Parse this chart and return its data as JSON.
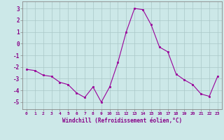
{
  "x": [
    0,
    1,
    2,
    3,
    4,
    5,
    6,
    7,
    8,
    9,
    10,
    11,
    12,
    13,
    14,
    15,
    16,
    17,
    18,
    19,
    20,
    21,
    22,
    23
  ],
  "y": [
    -2.2,
    -2.3,
    -2.7,
    -2.8,
    -3.3,
    -3.5,
    -4.2,
    -4.6,
    -3.7,
    -5.0,
    -3.7,
    -1.6,
    1.0,
    3.0,
    2.9,
    1.6,
    -0.3,
    -0.7,
    -2.6,
    -3.1,
    -3.5,
    -4.3,
    -4.5,
    -2.8
  ],
  "line_color": "#990099",
  "marker": "s",
  "marker_size": 2.0,
  "bg_color": "#cce8e8",
  "grid_color": "#aac8c8",
  "ylabel_ticks": [
    3,
    2,
    1,
    0,
    -1,
    -2,
    -3,
    -4,
    -5
  ],
  "ylim": [
    -5.6,
    3.6
  ],
  "xlim": [
    -0.5,
    23.5
  ],
  "xlabel": "Windchill (Refroidissement éolien,°C)",
  "xlabel_color": "#880088",
  "tick_color": "#880088",
  "axis_color": "#888888"
}
